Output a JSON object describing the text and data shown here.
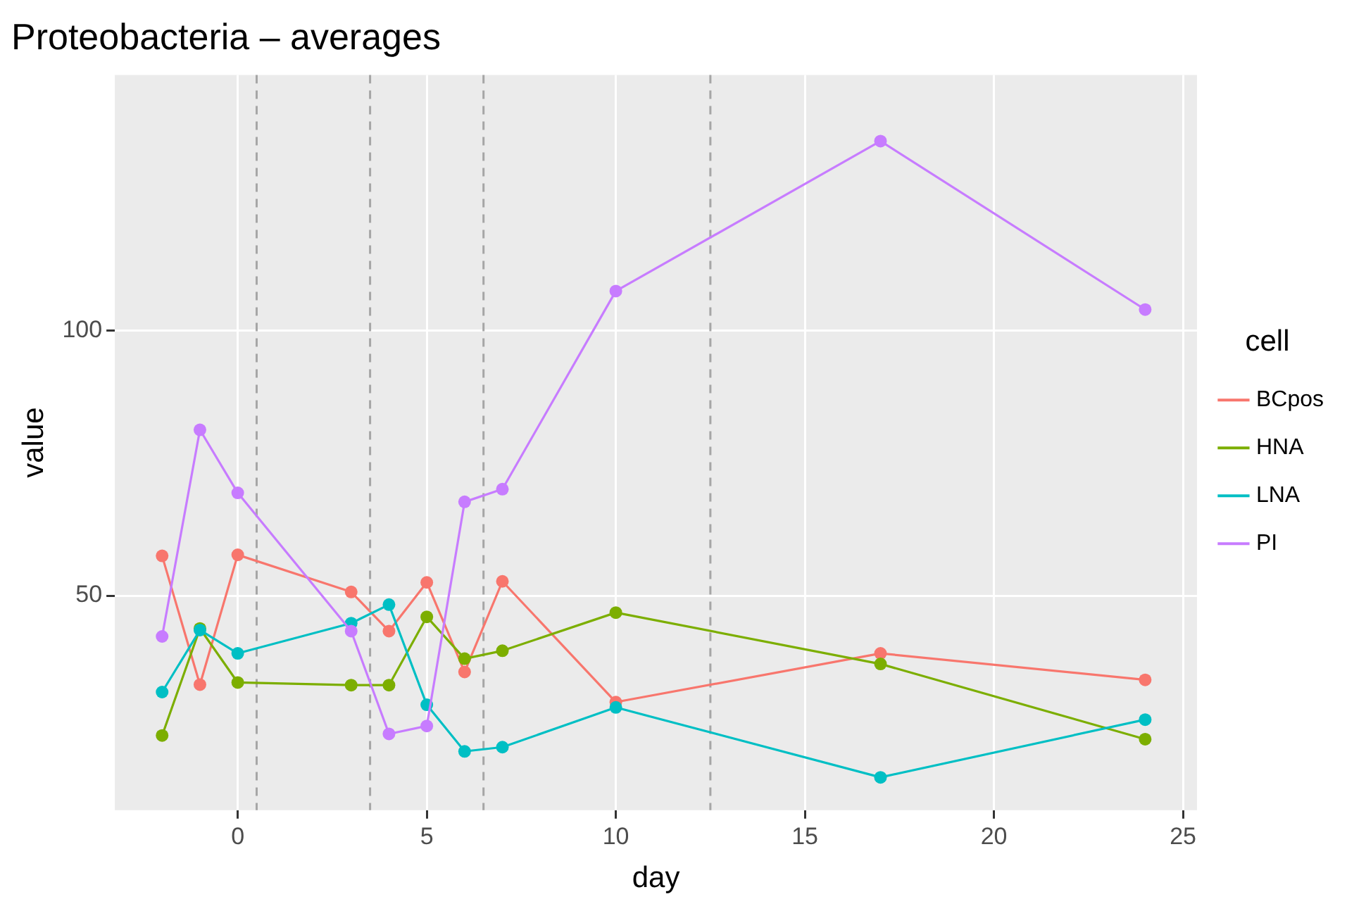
{
  "chart_data": {
    "type": "line",
    "title": "Proteobacteria – averages",
    "xlabel": "day",
    "ylabel": "value",
    "legend_title": "cell",
    "legend": "right",
    "grid": true,
    "marker": "circle",
    "line_style": "solid",
    "x": [
      -2,
      -1,
      0,
      3,
      4,
      5,
      6,
      7,
      10,
      17,
      24
    ],
    "xlim": [
      -3.25,
      25.37
    ],
    "xticks": [
      0,
      5,
      10,
      15,
      20,
      25
    ],
    "ylim": [
      9.5,
      148.3
    ],
    "yticks": [
      50,
      100
    ],
    "series": [
      {
        "name": "BCpos",
        "color": "#f8766d",
        "values": [
          57.5,
          33.2,
          57.7,
          50.7,
          43.3,
          52.5,
          35.6,
          52.7,
          29.9,
          39.1,
          34.1
        ]
      },
      {
        "name": "HNA",
        "color": "#7cae00",
        "values": [
          23.6,
          43.8,
          33.6,
          33.1,
          33.1,
          46.0,
          38.1,
          39.6,
          46.8,
          37.1,
          22.9
        ]
      },
      {
        "name": "LNA",
        "color": "#00bfc4",
        "values": [
          31.8,
          43.5,
          39.1,
          44.8,
          48.3,
          29.4,
          20.6,
          21.4,
          28.9,
          15.7,
          26.6
        ]
      },
      {
        "name": "PI",
        "color": "#c77cff",
        "values": [
          42.3,
          81.3,
          69.4,
          43.3,
          23.9,
          25.4,
          67.7,
          70.1,
          107.5,
          135.8,
          104.0
        ]
      }
    ],
    "ref_lines": [
      {
        "axis": "x",
        "value": 0.5,
        "color": "#a6a6a6",
        "line_style": "dashed"
      },
      {
        "axis": "x",
        "value": 3.5,
        "color": "#a6a6a6",
        "line_style": "dashed"
      },
      {
        "axis": "x",
        "value": 6.5,
        "color": "#a6a6a6",
        "line_style": "dashed"
      },
      {
        "axis": "x",
        "value": 12.5,
        "color": "#a6a6a6",
        "line_style": "dashed"
      }
    ]
  }
}
